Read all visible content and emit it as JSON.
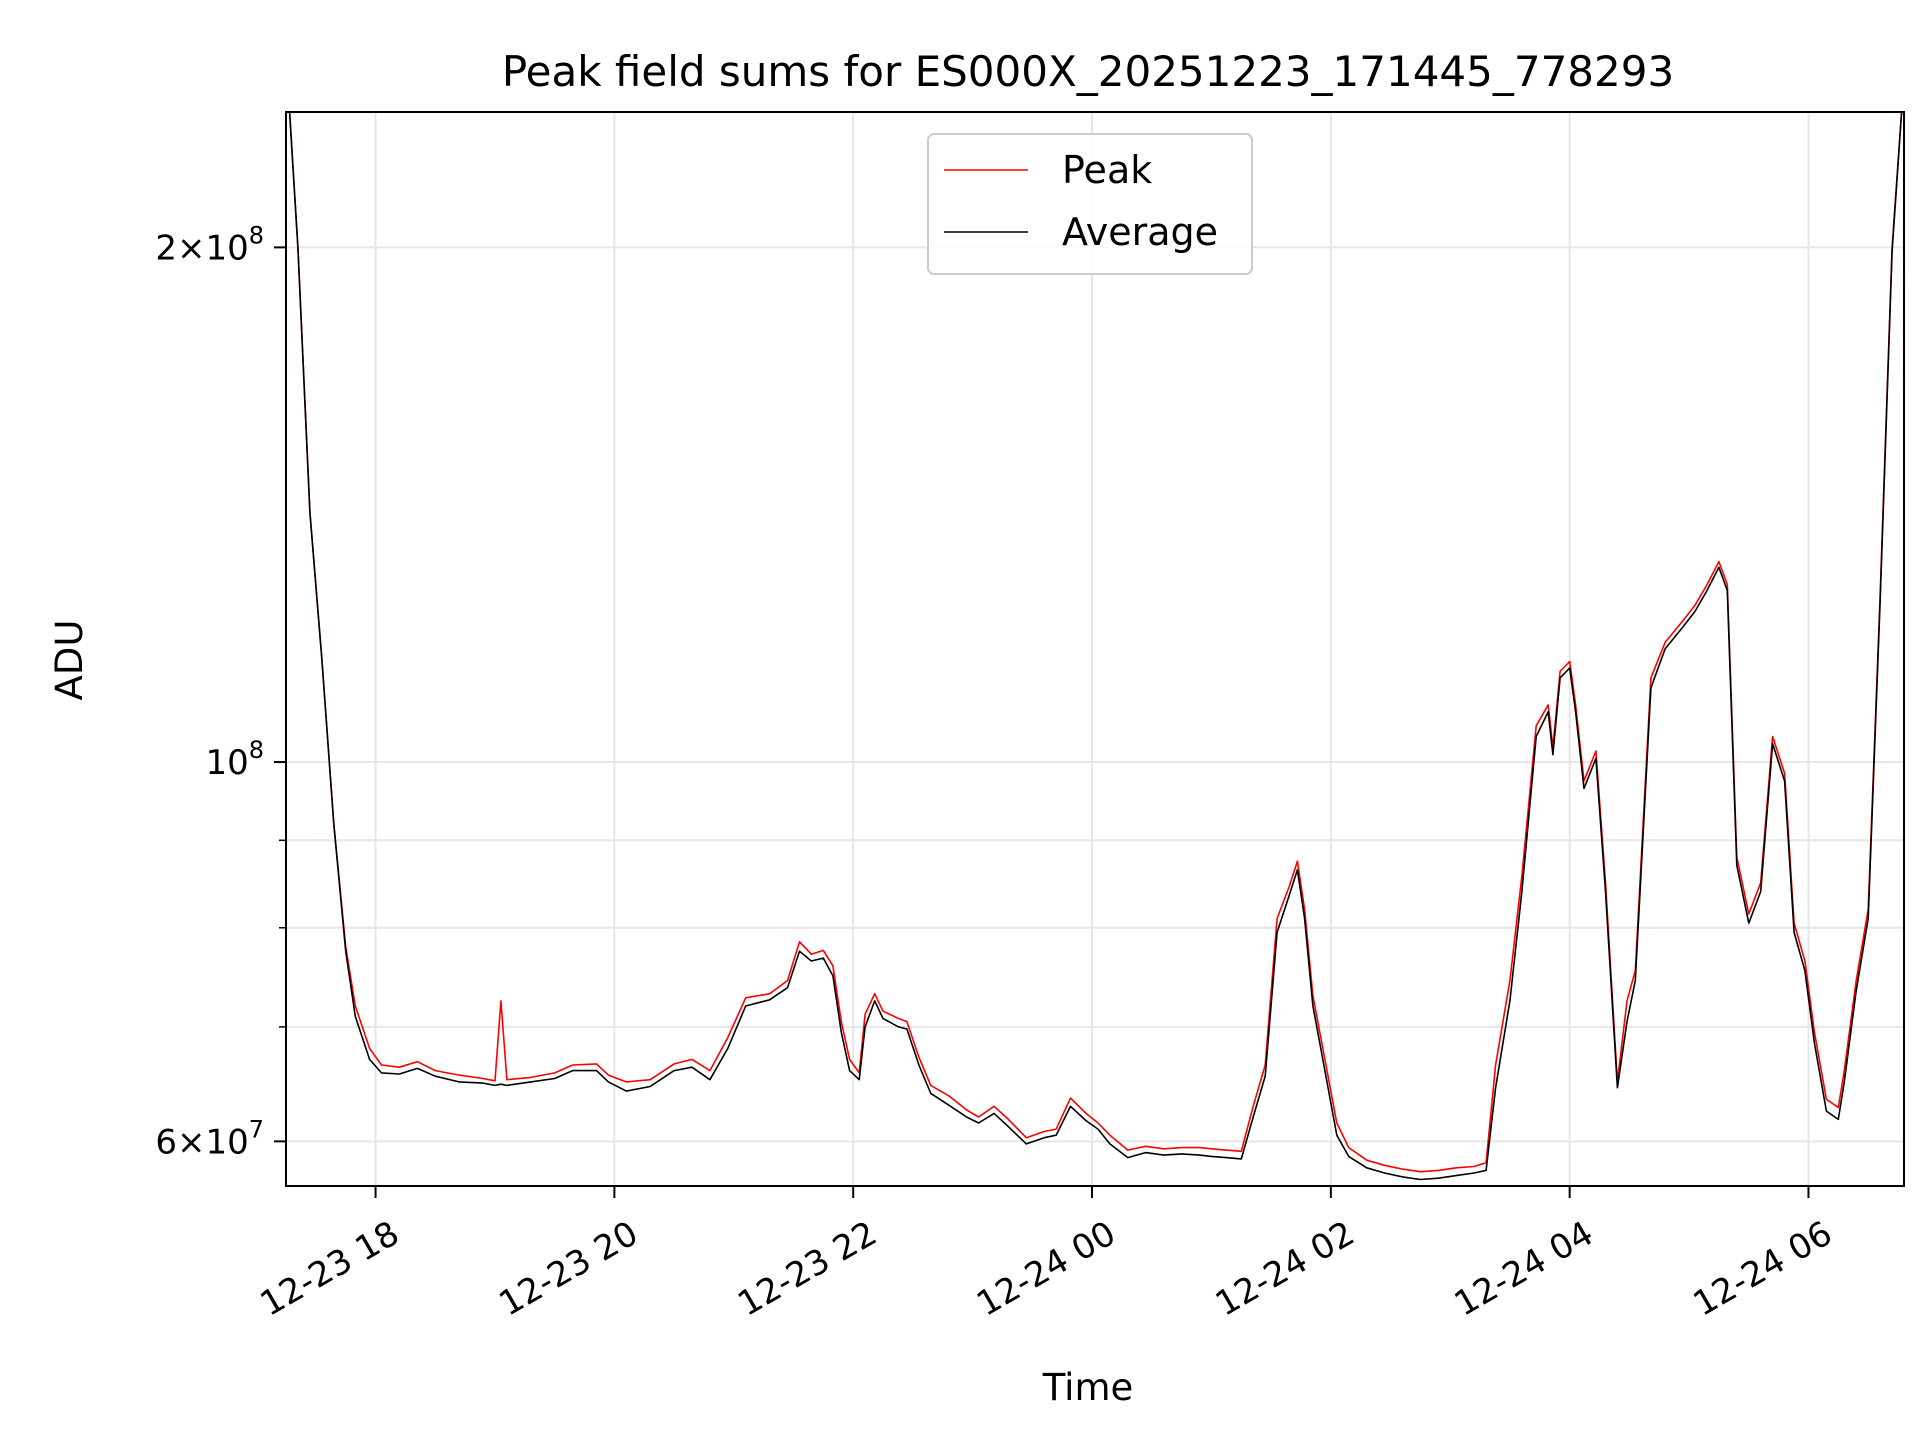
{
  "chart_data": {
    "type": "line",
    "title": "Peak field sums for ES000X_20251223_171445_778293",
    "xlabel": "Time",
    "ylabel": "ADU",
    "yscale": "log",
    "ylim": [
      56500000,
      240000000
    ],
    "xlim_hours": [
      17.25,
      30.8
    ],
    "grid": true,
    "legend_position": "upper center",
    "x_ticks": [
      {
        "hour": 18,
        "label": "12-23 18"
      },
      {
        "hour": 20,
        "label": "12-23 20"
      },
      {
        "hour": 22,
        "label": "12-23 22"
      },
      {
        "hour": 24,
        "label": "12-24 00"
      },
      {
        "hour": 26,
        "label": "12-24 02"
      },
      {
        "hour": 28,
        "label": "12-24 04"
      },
      {
        "hour": 30,
        "label": "12-24 06"
      }
    ],
    "y_major_ticks": [
      {
        "value": 60000000,
        "mantissa": "6",
        "exp": "7"
      },
      {
        "value": 100000000,
        "mantissa": "",
        "exp": "8"
      },
      {
        "value": 200000000,
        "mantissa": "2",
        "exp": "8"
      }
    ],
    "y_minor_ticks": [
      70000000,
      80000000,
      90000000
    ],
    "series": [
      {
        "name": "Peak",
        "color": "#ff0000",
        "points": [
          [
            17.28,
            240000000
          ],
          [
            17.35,
            200000000
          ],
          [
            17.45,
            140000000
          ],
          [
            17.55,
            115000000
          ],
          [
            17.65,
            92000000
          ],
          [
            17.75,
            78000000
          ],
          [
            17.83,
            72000000
          ],
          [
            17.95,
            68000000
          ],
          [
            18.05,
            66500000
          ],
          [
            18.2,
            66300000
          ],
          [
            18.35,
            66800000
          ],
          [
            18.5,
            66000000
          ],
          [
            18.7,
            65600000
          ],
          [
            18.9,
            65300000
          ],
          [
            19.0,
            65100000
          ],
          [
            19.05,
            72500000
          ],
          [
            19.1,
            65200000
          ],
          [
            19.3,
            65400000
          ],
          [
            19.5,
            65800000
          ],
          [
            19.65,
            66500000
          ],
          [
            19.85,
            66600000
          ],
          [
            19.95,
            65600000
          ],
          [
            20.1,
            65000000
          ],
          [
            20.3,
            65200000
          ],
          [
            20.5,
            66600000
          ],
          [
            20.65,
            67000000
          ],
          [
            20.8,
            66000000
          ],
          [
            20.95,
            69000000
          ],
          [
            21.1,
            72800000
          ],
          [
            21.3,
            73200000
          ],
          [
            21.45,
            74500000
          ],
          [
            21.55,
            78500000
          ],
          [
            21.65,
            77200000
          ],
          [
            21.75,
            77600000
          ],
          [
            21.83,
            76000000
          ],
          [
            21.9,
            70500000
          ],
          [
            21.97,
            67000000
          ],
          [
            22.05,
            65800000
          ],
          [
            22.1,
            71200000
          ],
          [
            22.18,
            73200000
          ],
          [
            22.25,
            71500000
          ],
          [
            22.38,
            70800000
          ],
          [
            22.45,
            70500000
          ],
          [
            22.55,
            67200000
          ],
          [
            22.65,
            64700000
          ],
          [
            22.8,
            63800000
          ],
          [
            22.95,
            62600000
          ],
          [
            23.05,
            62000000
          ],
          [
            23.18,
            62900000
          ],
          [
            23.3,
            61800000
          ],
          [
            23.45,
            60300000
          ],
          [
            23.6,
            60800000
          ],
          [
            23.7,
            61000000
          ],
          [
            23.82,
            63600000
          ],
          [
            23.95,
            62300000
          ],
          [
            24.05,
            61500000
          ],
          [
            24.15,
            60500000
          ],
          [
            24.3,
            59300000
          ],
          [
            24.45,
            59600000
          ],
          [
            24.6,
            59400000
          ],
          [
            24.75,
            59500000
          ],
          [
            24.9,
            59500000
          ],
          [
            25.0,
            59400000
          ],
          [
            25.12,
            59300000
          ],
          [
            25.25,
            59200000
          ],
          [
            25.35,
            62900000
          ],
          [
            25.45,
            66500000
          ],
          [
            25.55,
            81000000
          ],
          [
            25.65,
            84500000
          ],
          [
            25.72,
            87500000
          ],
          [
            25.78,
            82000000
          ],
          [
            25.85,
            73000000
          ],
          [
            25.95,
            67000000
          ],
          [
            26.05,
            61500000
          ],
          [
            26.15,
            59500000
          ],
          [
            26.3,
            58500000
          ],
          [
            26.45,
            58100000
          ],
          [
            26.6,
            57800000
          ],
          [
            26.75,
            57600000
          ],
          [
            26.9,
            57700000
          ],
          [
            27.05,
            57900000
          ],
          [
            27.2,
            58000000
          ],
          [
            27.3,
            58300000
          ],
          [
            27.38,
            66500000
          ],
          [
            27.5,
            74500000
          ],
          [
            27.6,
            85800000
          ],
          [
            27.72,
            105000000
          ],
          [
            27.82,
            108000000
          ],
          [
            27.86,
            102000000
          ],
          [
            27.92,
            113000000
          ],
          [
            28.0,
            114500000
          ],
          [
            28.05,
            108000000
          ],
          [
            28.12,
            97500000
          ],
          [
            28.22,
            101500000
          ],
          [
            28.3,
            85000000
          ],
          [
            28.4,
            65000000
          ],
          [
            28.48,
            72500000
          ],
          [
            28.55,
            75500000
          ],
          [
            28.68,
            112000000
          ],
          [
            28.8,
            117500000
          ],
          [
            28.95,
            121000000
          ],
          [
            29.05,
            123500000
          ],
          [
            29.15,
            127000000
          ],
          [
            29.25,
            131000000
          ],
          [
            29.32,
            127000000
          ],
          [
            29.4,
            88000000
          ],
          [
            29.5,
            81500000
          ],
          [
            29.6,
            85000000
          ],
          [
            29.7,
            103500000
          ],
          [
            29.8,
            98500000
          ],
          [
            29.88,
            80500000
          ],
          [
            29.97,
            76500000
          ],
          [
            30.05,
            69500000
          ],
          [
            30.15,
            63500000
          ],
          [
            30.25,
            62800000
          ],
          [
            30.3,
            66000000
          ],
          [
            30.4,
            74500000
          ],
          [
            30.5,
            82000000
          ],
          [
            30.6,
            125000000
          ],
          [
            30.7,
            200000000
          ],
          [
            30.78,
            240000000
          ]
        ]
      },
      {
        "name": "Average",
        "color": "#000000",
        "points": [
          [
            17.28,
            240000000
          ],
          [
            17.35,
            200000000
          ],
          [
            17.45,
            140000000
          ],
          [
            17.55,
            115000000
          ],
          [
            17.65,
            92000000
          ],
          [
            17.75,
            77500000
          ],
          [
            17.83,
            71000000
          ],
          [
            17.95,
            67000000
          ],
          [
            18.05,
            65800000
          ],
          [
            18.2,
            65700000
          ],
          [
            18.35,
            66200000
          ],
          [
            18.5,
            65500000
          ],
          [
            18.7,
            65000000
          ],
          [
            18.9,
            64900000
          ],
          [
            19.0,
            64700000
          ],
          [
            19.05,
            64800000
          ],
          [
            19.1,
            64700000
          ],
          [
            19.3,
            65000000
          ],
          [
            19.5,
            65300000
          ],
          [
            19.65,
            66000000
          ],
          [
            19.85,
            66000000
          ],
          [
            19.95,
            65000000
          ],
          [
            20.1,
            64200000
          ],
          [
            20.3,
            64600000
          ],
          [
            20.5,
            66000000
          ],
          [
            20.65,
            66300000
          ],
          [
            20.8,
            65200000
          ],
          [
            20.95,
            68000000
          ],
          [
            21.1,
            72000000
          ],
          [
            21.3,
            72600000
          ],
          [
            21.45,
            73800000
          ],
          [
            21.55,
            77500000
          ],
          [
            21.65,
            76500000
          ],
          [
            21.75,
            76800000
          ],
          [
            21.83,
            75000000
          ],
          [
            21.9,
            69500000
          ],
          [
            21.97,
            66000000
          ],
          [
            22.05,
            65200000
          ],
          [
            22.1,
            70000000
          ],
          [
            22.18,
            72500000
          ],
          [
            22.25,
            70800000
          ],
          [
            22.38,
            70000000
          ],
          [
            22.45,
            69800000
          ],
          [
            22.55,
            66500000
          ],
          [
            22.65,
            64000000
          ],
          [
            22.8,
            63000000
          ],
          [
            22.95,
            62000000
          ],
          [
            23.05,
            61500000
          ],
          [
            23.18,
            62300000
          ],
          [
            23.3,
            61200000
          ],
          [
            23.45,
            59800000
          ],
          [
            23.6,
            60300000
          ],
          [
            23.7,
            60500000
          ],
          [
            23.82,
            62900000
          ],
          [
            23.95,
            61700000
          ],
          [
            24.05,
            61000000
          ],
          [
            24.15,
            59800000
          ],
          [
            24.3,
            58700000
          ],
          [
            24.45,
            59100000
          ],
          [
            24.6,
            58900000
          ],
          [
            24.75,
            59000000
          ],
          [
            24.9,
            58900000
          ],
          [
            25.0,
            58800000
          ],
          [
            25.12,
            58700000
          ],
          [
            25.25,
            58600000
          ],
          [
            25.35,
            62000000
          ],
          [
            25.45,
            65500000
          ],
          [
            25.55,
            79500000
          ],
          [
            25.65,
            83500000
          ],
          [
            25.72,
            86500000
          ],
          [
            25.78,
            81000000
          ],
          [
            25.85,
            72000000
          ],
          [
            25.95,
            66000000
          ],
          [
            26.05,
            60500000
          ],
          [
            26.15,
            58800000
          ],
          [
            26.3,
            57900000
          ],
          [
            26.45,
            57500000
          ],
          [
            26.6,
            57200000
          ],
          [
            26.75,
            57000000
          ],
          [
            26.9,
            57100000
          ],
          [
            27.05,
            57300000
          ],
          [
            27.2,
            57500000
          ],
          [
            27.3,
            57700000
          ],
          [
            27.38,
            64500000
          ],
          [
            27.5,
            72500000
          ],
          [
            27.6,
            84000000
          ],
          [
            27.72,
            103500000
          ],
          [
            27.82,
            107000000
          ],
          [
            27.86,
            101000000
          ],
          [
            27.92,
            112000000
          ],
          [
            28.0,
            113500000
          ],
          [
            28.05,
            107000000
          ],
          [
            28.12,
            96500000
          ],
          [
            28.22,
            100500000
          ],
          [
            28.3,
            84000000
          ],
          [
            28.4,
            64500000
          ],
          [
            28.48,
            70500000
          ],
          [
            28.55,
            74500000
          ],
          [
            28.68,
            110500000
          ],
          [
            28.8,
            116500000
          ],
          [
            28.95,
            120000000
          ],
          [
            29.05,
            122500000
          ],
          [
            29.15,
            126000000
          ],
          [
            29.25,
            130000000
          ],
          [
            29.32,
            126000000
          ],
          [
            29.4,
            87000000
          ],
          [
            29.5,
            80500000
          ],
          [
            29.6,
            84000000
          ],
          [
            29.7,
            102500000
          ],
          [
            29.8,
            97500000
          ],
          [
            29.88,
            79500000
          ],
          [
            29.97,
            75500000
          ],
          [
            30.05,
            68500000
          ],
          [
            30.15,
            62500000
          ],
          [
            30.25,
            61800000
          ],
          [
            30.3,
            65000000
          ],
          [
            30.4,
            73500000
          ],
          [
            30.5,
            81000000
          ],
          [
            30.6,
            124000000
          ],
          [
            30.7,
            199000000
          ],
          [
            30.78,
            240000000
          ]
        ]
      }
    ]
  }
}
